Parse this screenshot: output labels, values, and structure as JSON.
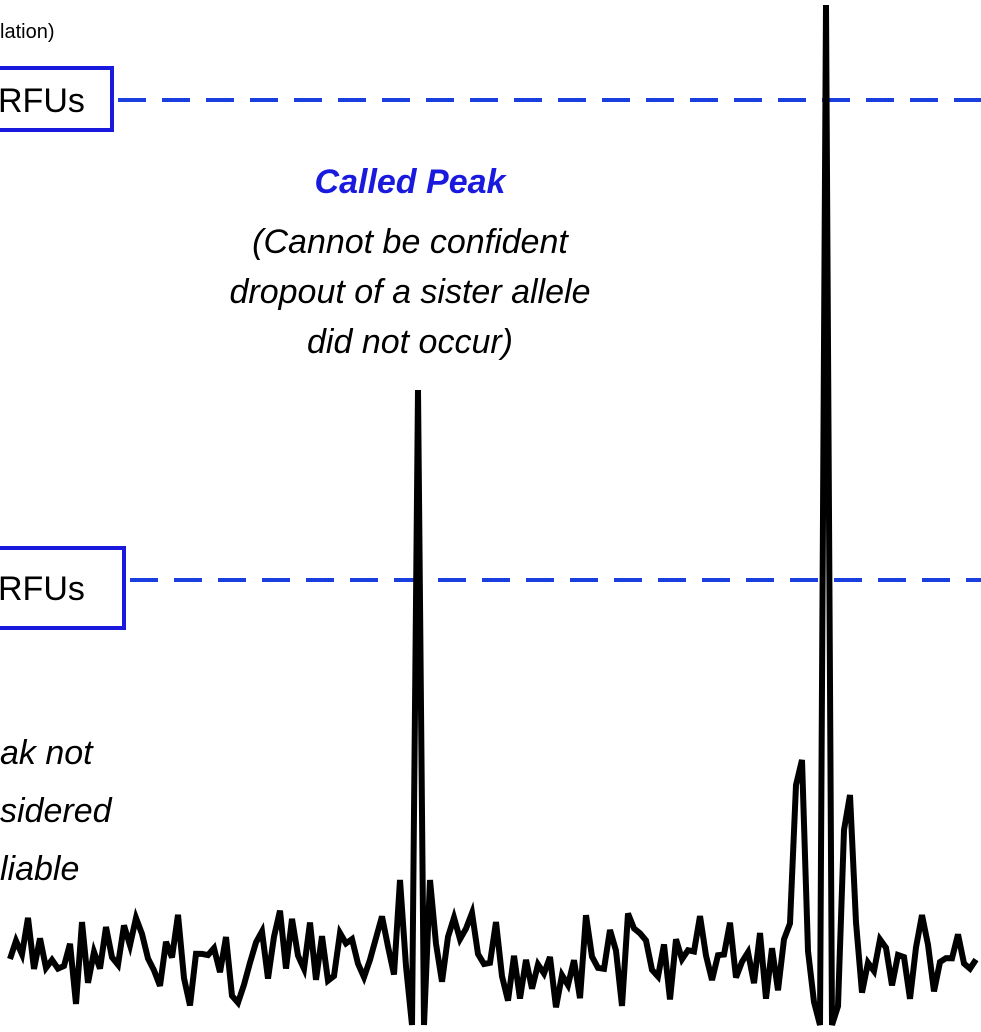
{
  "header": {
    "partial_label": "lation)"
  },
  "thresholds": [
    {
      "label": "RFUs"
    },
    {
      "label": "RFUs"
    }
  ],
  "called_peak": {
    "title": "Called Peak",
    "lines": [
      "(Cannot be confident",
      "dropout of a sister allele",
      "did not occur)"
    ]
  },
  "left_note": {
    "lines": [
      "ak not",
      "sidered",
      "liable"
    ]
  }
}
